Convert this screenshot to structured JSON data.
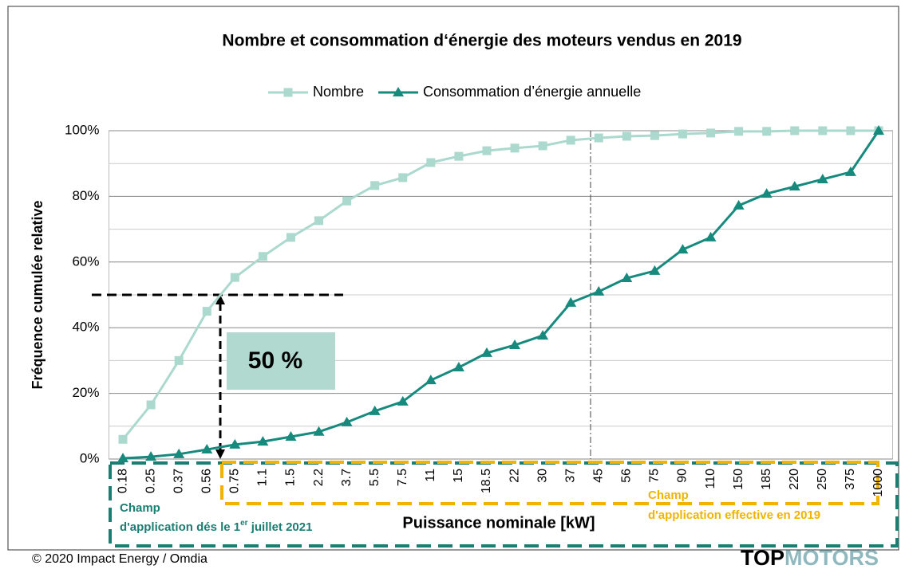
{
  "chart_data": {
    "type": "line",
    "title": "Nombre et consommation d‘énergie des moteurs vendus en 2019",
    "xlabel": "Puissance nominale [kW]",
    "ylabel": "Fréquence cumulée relative",
    "categories": [
      "0.18",
      "0.25",
      "0.37",
      "0.56",
      "0.75",
      "1.1",
      "1.5",
      "2.2",
      "3.7",
      "5.5",
      "7.5",
      "11",
      "15",
      "18.5",
      "22",
      "30",
      "37",
      "45",
      "56",
      "75",
      "90",
      "110",
      "150",
      "185",
      "220",
      "250",
      "375",
      "1000"
    ],
    "series": [
      {
        "name": "Nombre",
        "color": "#abd9cd",
        "marker": "square",
        "values": [
          6,
          16.5,
          30,
          45,
          55.3,
          61.7,
          67.5,
          72.6,
          78.6,
          83.3,
          85.7,
          90.3,
          92.2,
          93.9,
          94.7,
          95.4,
          97.1,
          97.8,
          98.3,
          98.5,
          99,
          99.3,
          99.8,
          99.8,
          100,
          100,
          100,
          100
        ]
      },
      {
        "name": "Consommation d’énergie annuelle",
        "color": "#178a7e",
        "marker": "triangle",
        "values": [
          0.2,
          0.7,
          1.5,
          2.9,
          4.4,
          5.3,
          6.8,
          8.3,
          11.2,
          14.6,
          17.5,
          24,
          27.9,
          32.3,
          34.7,
          37.6,
          47.6,
          51,
          55.1,
          57.3,
          63.8,
          67.5,
          77.2,
          80.8,
          83,
          85.2,
          87.4,
          100
        ]
      }
    ],
    "ylim": [
      0,
      100
    ],
    "yticks": [
      {
        "value": 0,
        "label": "0%"
      },
      {
        "value": 20,
        "label": "20%"
      },
      {
        "value": 40,
        "label": "40%"
      },
      {
        "value": 60,
        "label": "60%"
      },
      {
        "value": 80,
        "label": "80%"
      },
      {
        "value": 100,
        "label": "100%"
      }
    ],
    "minor_yticks": [
      10,
      30,
      50,
      70,
      90
    ],
    "grid": true,
    "legend": "top",
    "annotation": {
      "label": "50 %",
      "value": 50
    },
    "scope_left": {
      "line1": "Champ",
      "line2": "d'application dés le 1",
      "sup": "er",
      "line2_end": " juillet 2021"
    },
    "scope_right": {
      "line1": "Champ",
      "line2": "d'application effective  en 2019"
    },
    "source": "© 2020 Impact Energy / Omdia",
    "logo": {
      "part1": "TOP",
      "part2": "MOTORS"
    }
  }
}
